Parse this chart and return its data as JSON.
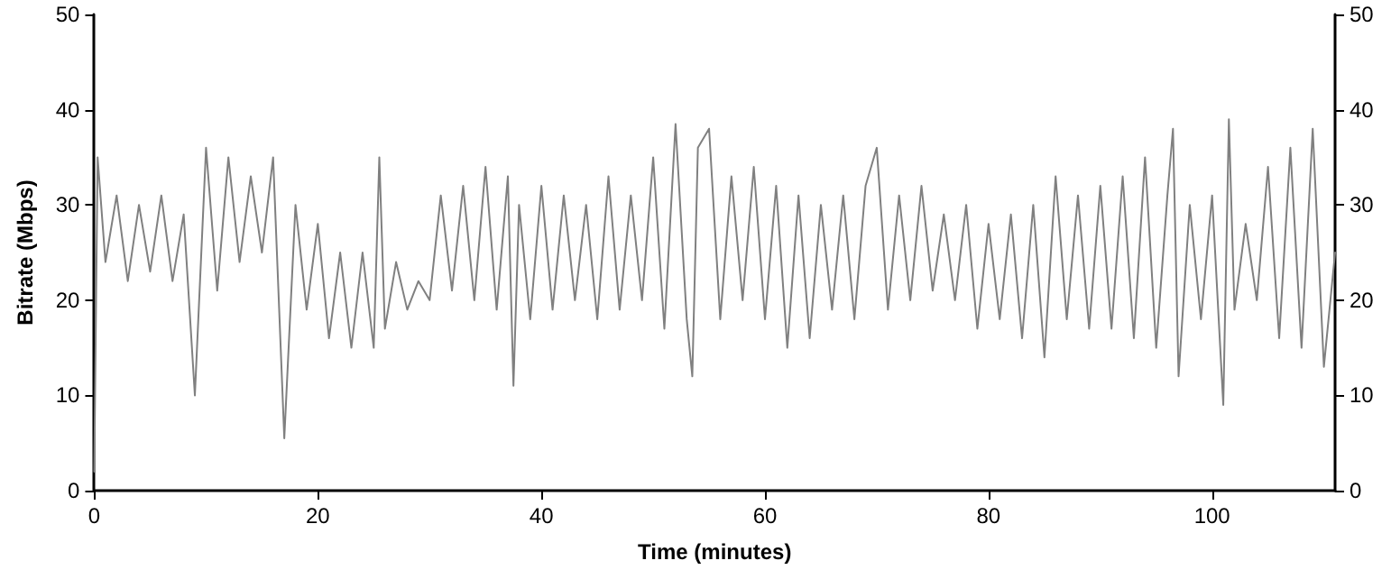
{
  "chart_data": {
    "type": "line",
    "xlabel": "Time (minutes)",
    "ylabel": "Bitrate (Mbps)",
    "xlim": [
      0,
      111
    ],
    "xticks": [
      0,
      20,
      40,
      60,
      80,
      100
    ],
    "ylim": [
      0,
      50
    ],
    "yticks": [
      0,
      10,
      20,
      30,
      40,
      50
    ],
    "y2lim": [
      0,
      50
    ],
    "y2ticks": [
      0,
      10,
      20,
      30,
      40,
      50
    ],
    "grid": false,
    "marker": "none",
    "line_style": "solid",
    "series": [
      {
        "color": "#808080",
        "x": [
          0,
          0.3,
          1,
          2,
          3,
          4,
          5,
          6,
          7,
          8,
          9,
          10,
          11,
          12,
          13,
          14,
          15,
          16,
          17,
          18,
          19,
          20,
          21,
          22,
          23,
          24,
          25,
          25.5,
          26,
          27,
          28,
          29,
          30,
          31,
          32,
          33,
          34,
          35,
          36,
          37,
          37.5,
          38,
          39,
          40,
          41,
          42,
          43,
          44,
          45,
          46,
          47,
          48,
          49,
          50,
          51,
          52,
          53,
          53.5,
          54,
          55,
          56,
          57,
          58,
          59,
          60,
          61,
          62,
          63,
          64,
          65,
          66,
          67,
          68,
          69,
          70,
          71,
          72,
          73,
          74,
          75,
          76,
          77,
          78,
          79,
          80,
          81,
          82,
          83,
          84,
          85,
          86,
          87,
          88,
          89,
          90,
          91,
          92,
          93,
          94,
          95,
          96,
          96.5,
          97,
          98,
          99,
          100,
          101,
          101.5,
          102,
          103,
          104,
          105,
          106,
          107,
          108,
          109,
          110,
          111
        ],
        "values": [
          2,
          35,
          24,
          31,
          22,
          30,
          23,
          31,
          22,
          29,
          10,
          36,
          21,
          35,
          24,
          33,
          25,
          35,
          5.5,
          30,
          19,
          28,
          16,
          25,
          15,
          25,
          15,
          35,
          17,
          24,
          19,
          22,
          20,
          31,
          21,
          32,
          20,
          34,
          19,
          33,
          11,
          30,
          18,
          32,
          19,
          31,
          20,
          30,
          18,
          33,
          19,
          31,
          20,
          35,
          17,
          38.5,
          18,
          12,
          36,
          38,
          18,
          33,
          20,
          34,
          18,
          32,
          15,
          31,
          16,
          30,
          19,
          31,
          18,
          32,
          36,
          19,
          31,
          20,
          32,
          21,
          29,
          20,
          30,
          17,
          28,
          18,
          29,
          16,
          30,
          14,
          33,
          18,
          31,
          17,
          32,
          17,
          33,
          16,
          35,
          15,
          31,
          38,
          12,
          30,
          18,
          31,
          9,
          39,
          19,
          28,
          20,
          34,
          16,
          36,
          15,
          38,
          13,
          25
        ]
      }
    ]
  }
}
